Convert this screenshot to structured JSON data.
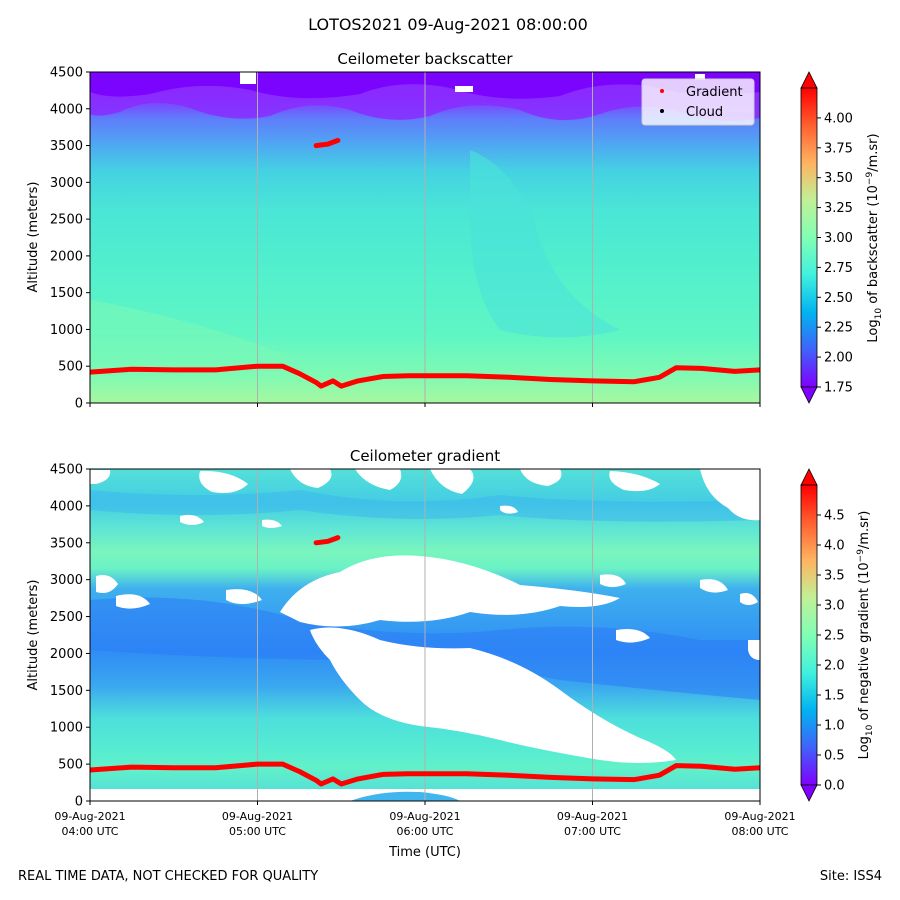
{
  "figure": {
    "suptitle": "LOTOS2021 09-Aug-2021 08:00:00",
    "footer_left": "REAL TIME DATA, NOT CHECKED FOR QUALITY",
    "footer_right": "Site: ISS4"
  },
  "chart_data": [
    {
      "type": "heatmap",
      "title": "Ceilometer backscatter",
      "ylabel": "Altitude (meters)",
      "xlabel": "",
      "ylim": [
        0,
        4500
      ],
      "yticks": [
        "0",
        "500",
        "1000",
        "1500",
        "2000",
        "2500",
        "3000",
        "3500",
        "4000",
        "4500"
      ],
      "colorbar": {
        "label_prefix": "Log",
        "label_sub": "10",
        "label_mid": " of backscatter (10",
        "label_sup": "−9",
        "label_suffix": "/m.sr)",
        "range": [
          1.75,
          4.25
        ],
        "ticks": [
          "1.75",
          "2.00",
          "2.25",
          "2.50",
          "2.75",
          "3.00",
          "3.25",
          "3.50",
          "3.75",
          "4.00"
        ]
      },
      "legend": {
        "placement": "top-right",
        "entries": [
          {
            "label": "Gradient",
            "color": "#ff0000"
          },
          {
            "label": "Cloud",
            "color": "#000000"
          }
        ]
      }
    },
    {
      "type": "heatmap",
      "title": "Ceilometer gradient",
      "ylabel": "Altitude (meters)",
      "xlabel": "Time (UTC)",
      "ylim": [
        0,
        4500
      ],
      "yticks": [
        "0",
        "500",
        "1000",
        "1500",
        "2000",
        "2500",
        "3000",
        "3500",
        "4000",
        "4500"
      ],
      "xticks": [
        {
          "date": "09-Aug-2021",
          "time": "04:00 UTC"
        },
        {
          "date": "09-Aug-2021",
          "time": "05:00 UTC"
        },
        {
          "date": "09-Aug-2021",
          "time": "06:00 UTC"
        },
        {
          "date": "09-Aug-2021",
          "time": "07:00 UTC"
        },
        {
          "date": "09-Aug-2021",
          "time": "08:00 UTC"
        }
      ],
      "colorbar": {
        "label_prefix": "Log",
        "label_sub": "10",
        "label_mid": " of negative gradient (10",
        "label_sup": "−9",
        "label_suffix": "/m.sr)",
        "range": [
          0,
          5
        ],
        "ticks": [
          "0.0",
          "0.5",
          "1.0",
          "1.5",
          "2.0",
          "2.5",
          "3.0",
          "3.5",
          "4.0",
          "4.5"
        ]
      }
    }
  ],
  "gradient_series": {
    "name": "Gradient",
    "x_hours": [
      4.0,
      4.25,
      4.5,
      4.75,
      5.0,
      5.15,
      5.25,
      5.35,
      5.38,
      5.45,
      5.5,
      5.6,
      5.75,
      5.9,
      6.0,
      6.25,
      6.5,
      6.75,
      7.0,
      7.25,
      7.4,
      7.5,
      7.65,
      7.85,
      8.0
    ],
    "y_m": [
      420,
      460,
      450,
      450,
      500,
      500,
      400,
      280,
      230,
      300,
      230,
      300,
      360,
      370,
      370,
      370,
      350,
      320,
      300,
      290,
      350,
      480,
      470,
      430,
      450
    ],
    "upper_x_hours": [
      5.35,
      5.42,
      5.48
    ],
    "upper_y_m": [
      3500,
      3520,
      3570
    ]
  },
  "colors": {
    "cmap": [
      "#8000ff",
      "#4062fa",
      "#01b3f0",
      "#41f1dd",
      "#80ffb4",
      "#c1f097",
      "#ffb360",
      "#ff6030",
      "#ff0000"
    ]
  }
}
